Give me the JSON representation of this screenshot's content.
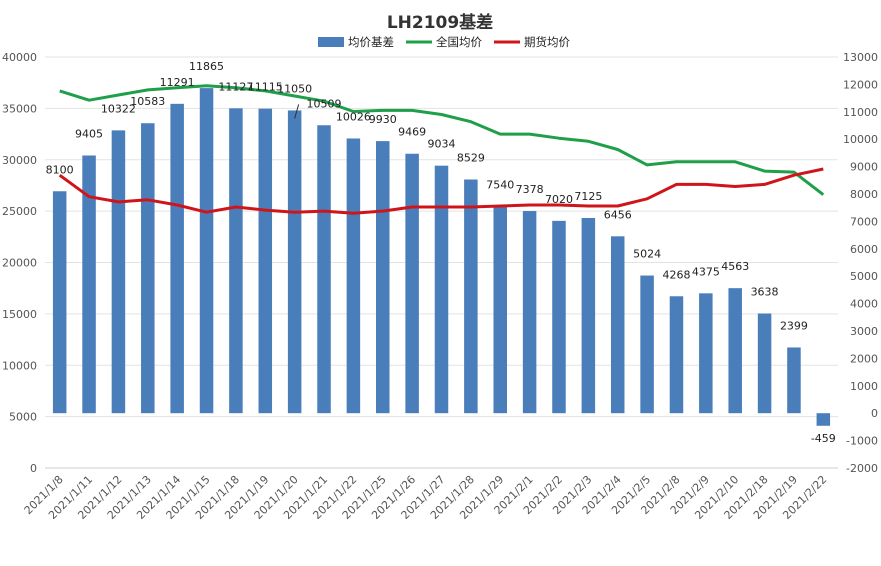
{
  "chart_data": {
    "type": "bar",
    "title": "LH2109基差",
    "categories": [
      "2021/1/8",
      "2021/1/11",
      "2021/1/12",
      "2021/1/13",
      "2021/1/14",
      "2021/1/15",
      "2021/1/18",
      "2021/1/19",
      "2021/1/20",
      "2021/1/21",
      "2021/1/22",
      "2021/1/25",
      "2021/1/26",
      "2021/1/27",
      "2021/1/28",
      "2021/1/29",
      "2021/2/1",
      "2021/2/2",
      "2021/2/3",
      "2021/2/4",
      "2021/2/5",
      "2021/2/8",
      "2021/2/9",
      "2021/2/10",
      "2021/2/18",
      "2021/2/19",
      "2021/2/22"
    ],
    "series": [
      {
        "name": "均价基差",
        "type": "bar",
        "axis": "right",
        "color": "#4a7ebb",
        "values": [
          8100,
          9405,
          10322,
          10583,
          11291,
          11865,
          11127,
          11115,
          11050,
          10509,
          10026,
          9930,
          9469,
          9034,
          8529,
          7540,
          7378,
          7020,
          7125,
          6456,
          5024,
          4268,
          4375,
          4563,
          3638,
          2399,
          -459
        ]
      },
      {
        "name": "全国均价",
        "type": "line",
        "axis": "left",
        "color": "#1f9f4a",
        "values": [
          36700,
          35800,
          36300,
          36800,
          37000,
          37200,
          37000,
          36700,
          36200,
          35700,
          34700,
          34800,
          34800,
          34400,
          33700,
          32500,
          32500,
          32100,
          31800,
          31000,
          29500,
          29800,
          29800,
          29800,
          28900,
          28800,
          26600
        ]
      },
      {
        "name": "期货均价",
        "type": "line",
        "axis": "left",
        "color": "#d0151a",
        "values": [
          28500,
          26400,
          25900,
          26100,
          25600,
          24900,
          25400,
          25100,
          24900,
          25000,
          24800,
          25000,
          25400,
          25400,
          25400,
          25500,
          25600,
          25600,
          25500,
          25500,
          26200,
          27600,
          27600,
          27400,
          27600,
          28500,
          29100
        ]
      }
    ],
    "y_left": {
      "min": 0,
      "max": 40000,
      "ticks": [
        "0",
        "5000",
        "10000",
        "15000",
        "20000",
        "25000",
        "30000",
        "35000",
        "40000"
      ]
    },
    "y_right": {
      "min": -2000,
      "max": 13000,
      "ticks": [
        "-2000",
        "-1000",
        "0",
        "1000",
        "2000",
        "3000",
        "4000",
        "5000",
        "6000",
        "7000",
        "8000",
        "9000",
        "10000",
        "11000",
        "12000",
        "13000"
      ]
    },
    "grid": true,
    "legend": "top"
  }
}
